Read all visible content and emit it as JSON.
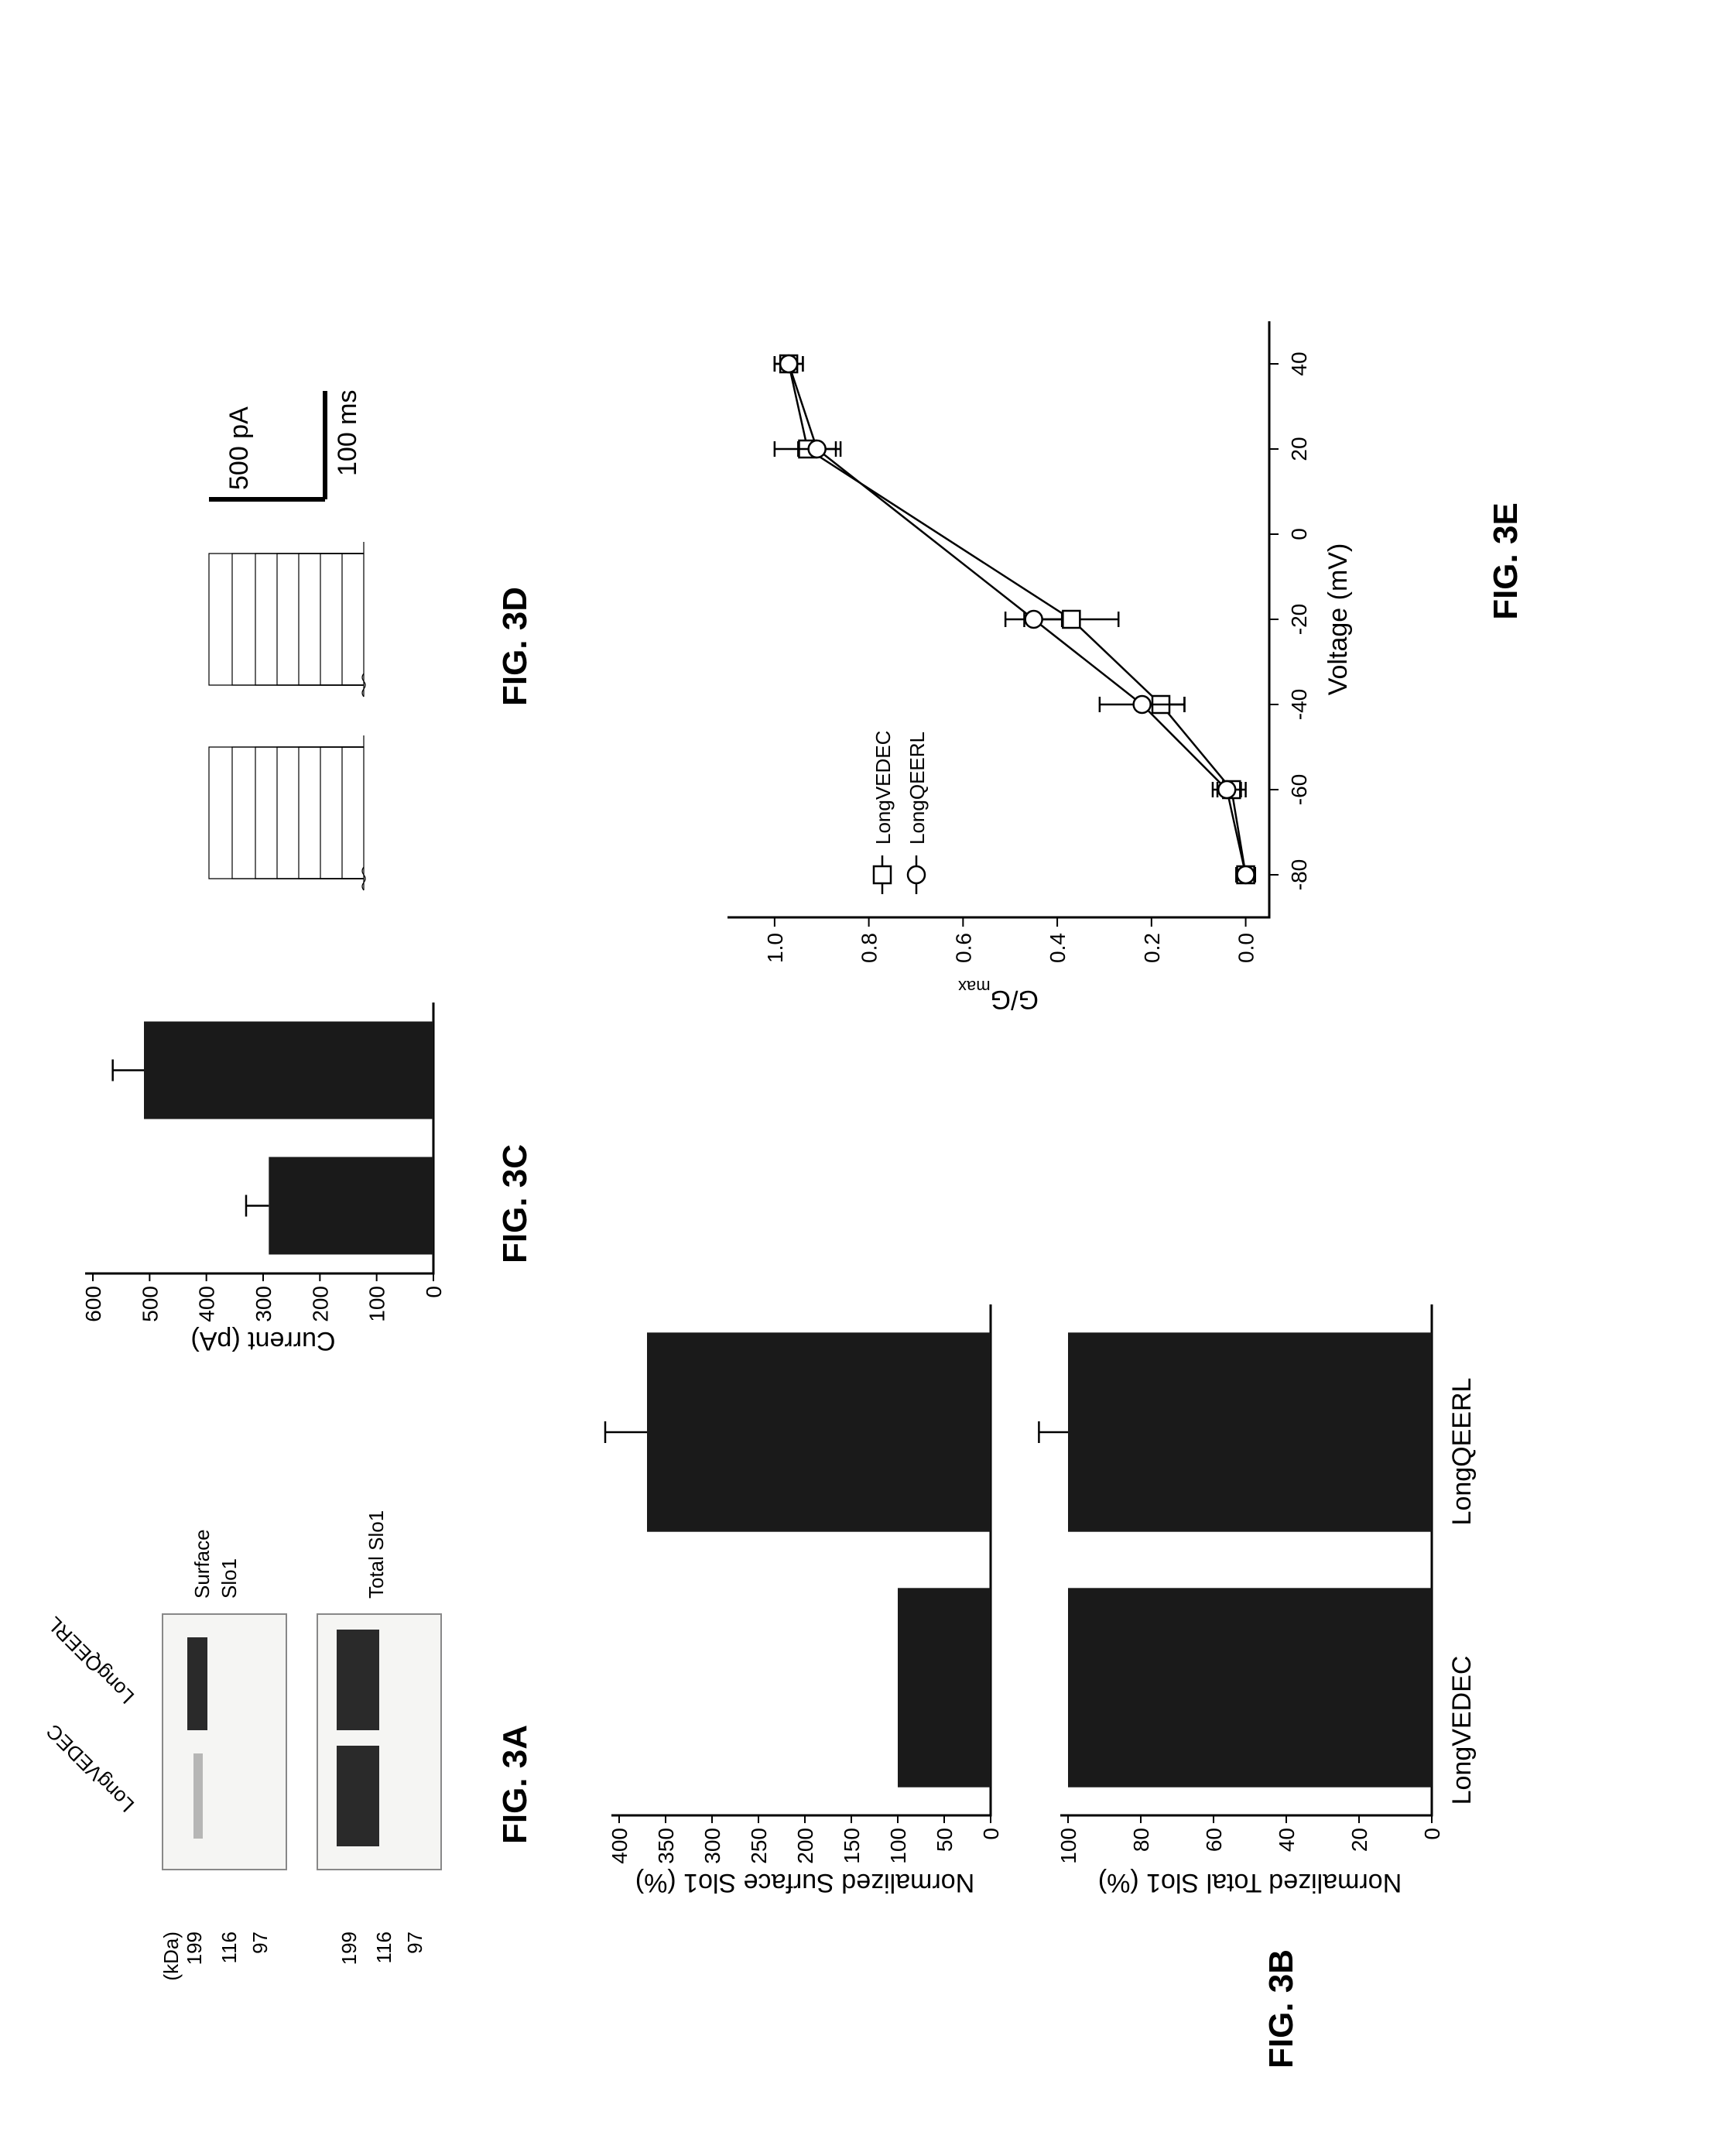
{
  "labels": {
    "fig3A": "FIG. 3A",
    "fig3B": "FIG. 3B",
    "fig3C": "FIG. 3C",
    "fig3D": "FIG. 3D",
    "fig3E": "FIG. 3E"
  },
  "western": {
    "kda_label": "(kDa)",
    "markers": [
      "199",
      "116",
      "97"
    ],
    "lanes": [
      "LongVEDEC",
      "LongQEERL"
    ],
    "row1_label_a": "Surface",
    "row1_label_b": "Slo1",
    "row2_label": "Total Slo1",
    "band_color": "#2a2a2a",
    "box_bg": "#f5f5f3"
  },
  "chart3A": {
    "type": "bar",
    "ylabel": "Normalized Surface Slo1 (%)",
    "yticks": [
      0,
      50,
      100,
      150,
      200,
      250,
      300,
      350,
      400
    ],
    "ymax": 400,
    "categories": [
      "LongVEDEC",
      "LongQEERL"
    ],
    "values": [
      100,
      370
    ],
    "errors": [
      0,
      45
    ],
    "bar_color": "#1a1a1a",
    "bar_width": 0.78
  },
  "chart3B": {
    "type": "bar",
    "ylabel": "Normalized Total Slo1 (%)",
    "yticks": [
      0,
      20,
      40,
      60,
      80,
      100
    ],
    "ymax": 100,
    "categories": [
      "LongVEDEC",
      "LongQEERL"
    ],
    "values": [
      100,
      100
    ],
    "errors": [
      0,
      8
    ],
    "bar_color": "#1a1a1a",
    "bar_width": 0.78
  },
  "chart3C": {
    "type": "bar",
    "ylabel": "Current (pA)",
    "yticks": [
      0,
      100,
      200,
      300,
      400,
      500,
      600
    ],
    "ymax": 600,
    "categories": [
      "",
      ""
    ],
    "values": [
      290,
      510
    ],
    "errors": [
      40,
      55
    ],
    "bar_color": "#1a1a1a",
    "bar_width": 0.72
  },
  "chart3D": {
    "type": "ephys_traces",
    "scale_y": "500 pA",
    "scale_x": "100 ms",
    "trace_color": "#000000",
    "baseline_y": 0,
    "step_levels": [
      28,
      56,
      84,
      112,
      140,
      170,
      200
    ],
    "step_width": 170,
    "gap": 80
  },
  "chart3E": {
    "type": "line",
    "xlabel": "Voltage (mV)",
    "ylabel": "G/G",
    "ylabel_sub": "max",
    "xticks": [
      -80,
      -60,
      -40,
      -20,
      0,
      20,
      40
    ],
    "yticks": [
      0.0,
      0.2,
      0.4,
      0.6,
      0.8,
      1.0
    ],
    "xmin": -90,
    "xmax": 50,
    "ymin": -0.05,
    "ymax": 1.1,
    "legend": [
      "LongVEDEC",
      "LongQEERL"
    ],
    "series": [
      {
        "name": "LongVEDEC",
        "marker": "square",
        "x": [
          -80,
          -60,
          -40,
          -20,
          20,
          40
        ],
        "y": [
          0.0,
          0.03,
          0.18,
          0.37,
          0.93,
          0.97
        ],
        "yerr": [
          0.02,
          0.03,
          0.05,
          0.1,
          0.07,
          0.03
        ]
      },
      {
        "name": "LongQEERL",
        "marker": "circle",
        "x": [
          -80,
          -60,
          -40,
          -20,
          20,
          40
        ],
        "y": [
          0.0,
          0.04,
          0.22,
          0.45,
          0.91,
          0.97
        ],
        "yerr": [
          0.02,
          0.03,
          0.09,
          0.06,
          0.04,
          0.03
        ]
      }
    ],
    "line_color": "#000000",
    "marker_fill": "#ffffff",
    "marker_size": 11
  },
  "layout": {
    "rotated": true,
    "bg": "#ffffff"
  }
}
